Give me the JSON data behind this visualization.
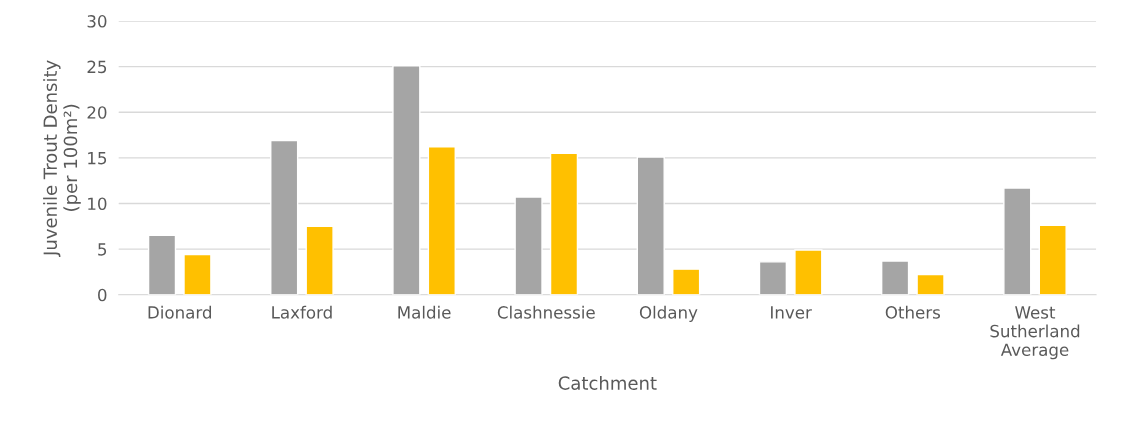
{
  "chart_data": {
    "type": "bar",
    "xlabel": "Catchment",
    "ylabel": "Juvenile Trout Density\n(per 100m²)",
    "categories": [
      "Dionard",
      "Laxford",
      "Maldie",
      "Clashnessie",
      "Oldany",
      "Inver",
      "Others",
      "West Sutherland Average"
    ],
    "series": [
      {
        "color": "#a5a5a5",
        "values": [
          6.5,
          16.9,
          25.1,
          10.7,
          15.1,
          3.6,
          3.7,
          11.7
        ]
      },
      {
        "color": "#ffc000",
        "values": [
          4.4,
          7.5,
          16.2,
          15.5,
          2.8,
          4.9,
          2.2,
          7.6
        ]
      }
    ],
    "ylim": [
      0,
      30
    ],
    "yticks": [
      0,
      5,
      10,
      15,
      20,
      25,
      30
    ],
    "grid": "y",
    "legend": false
  }
}
